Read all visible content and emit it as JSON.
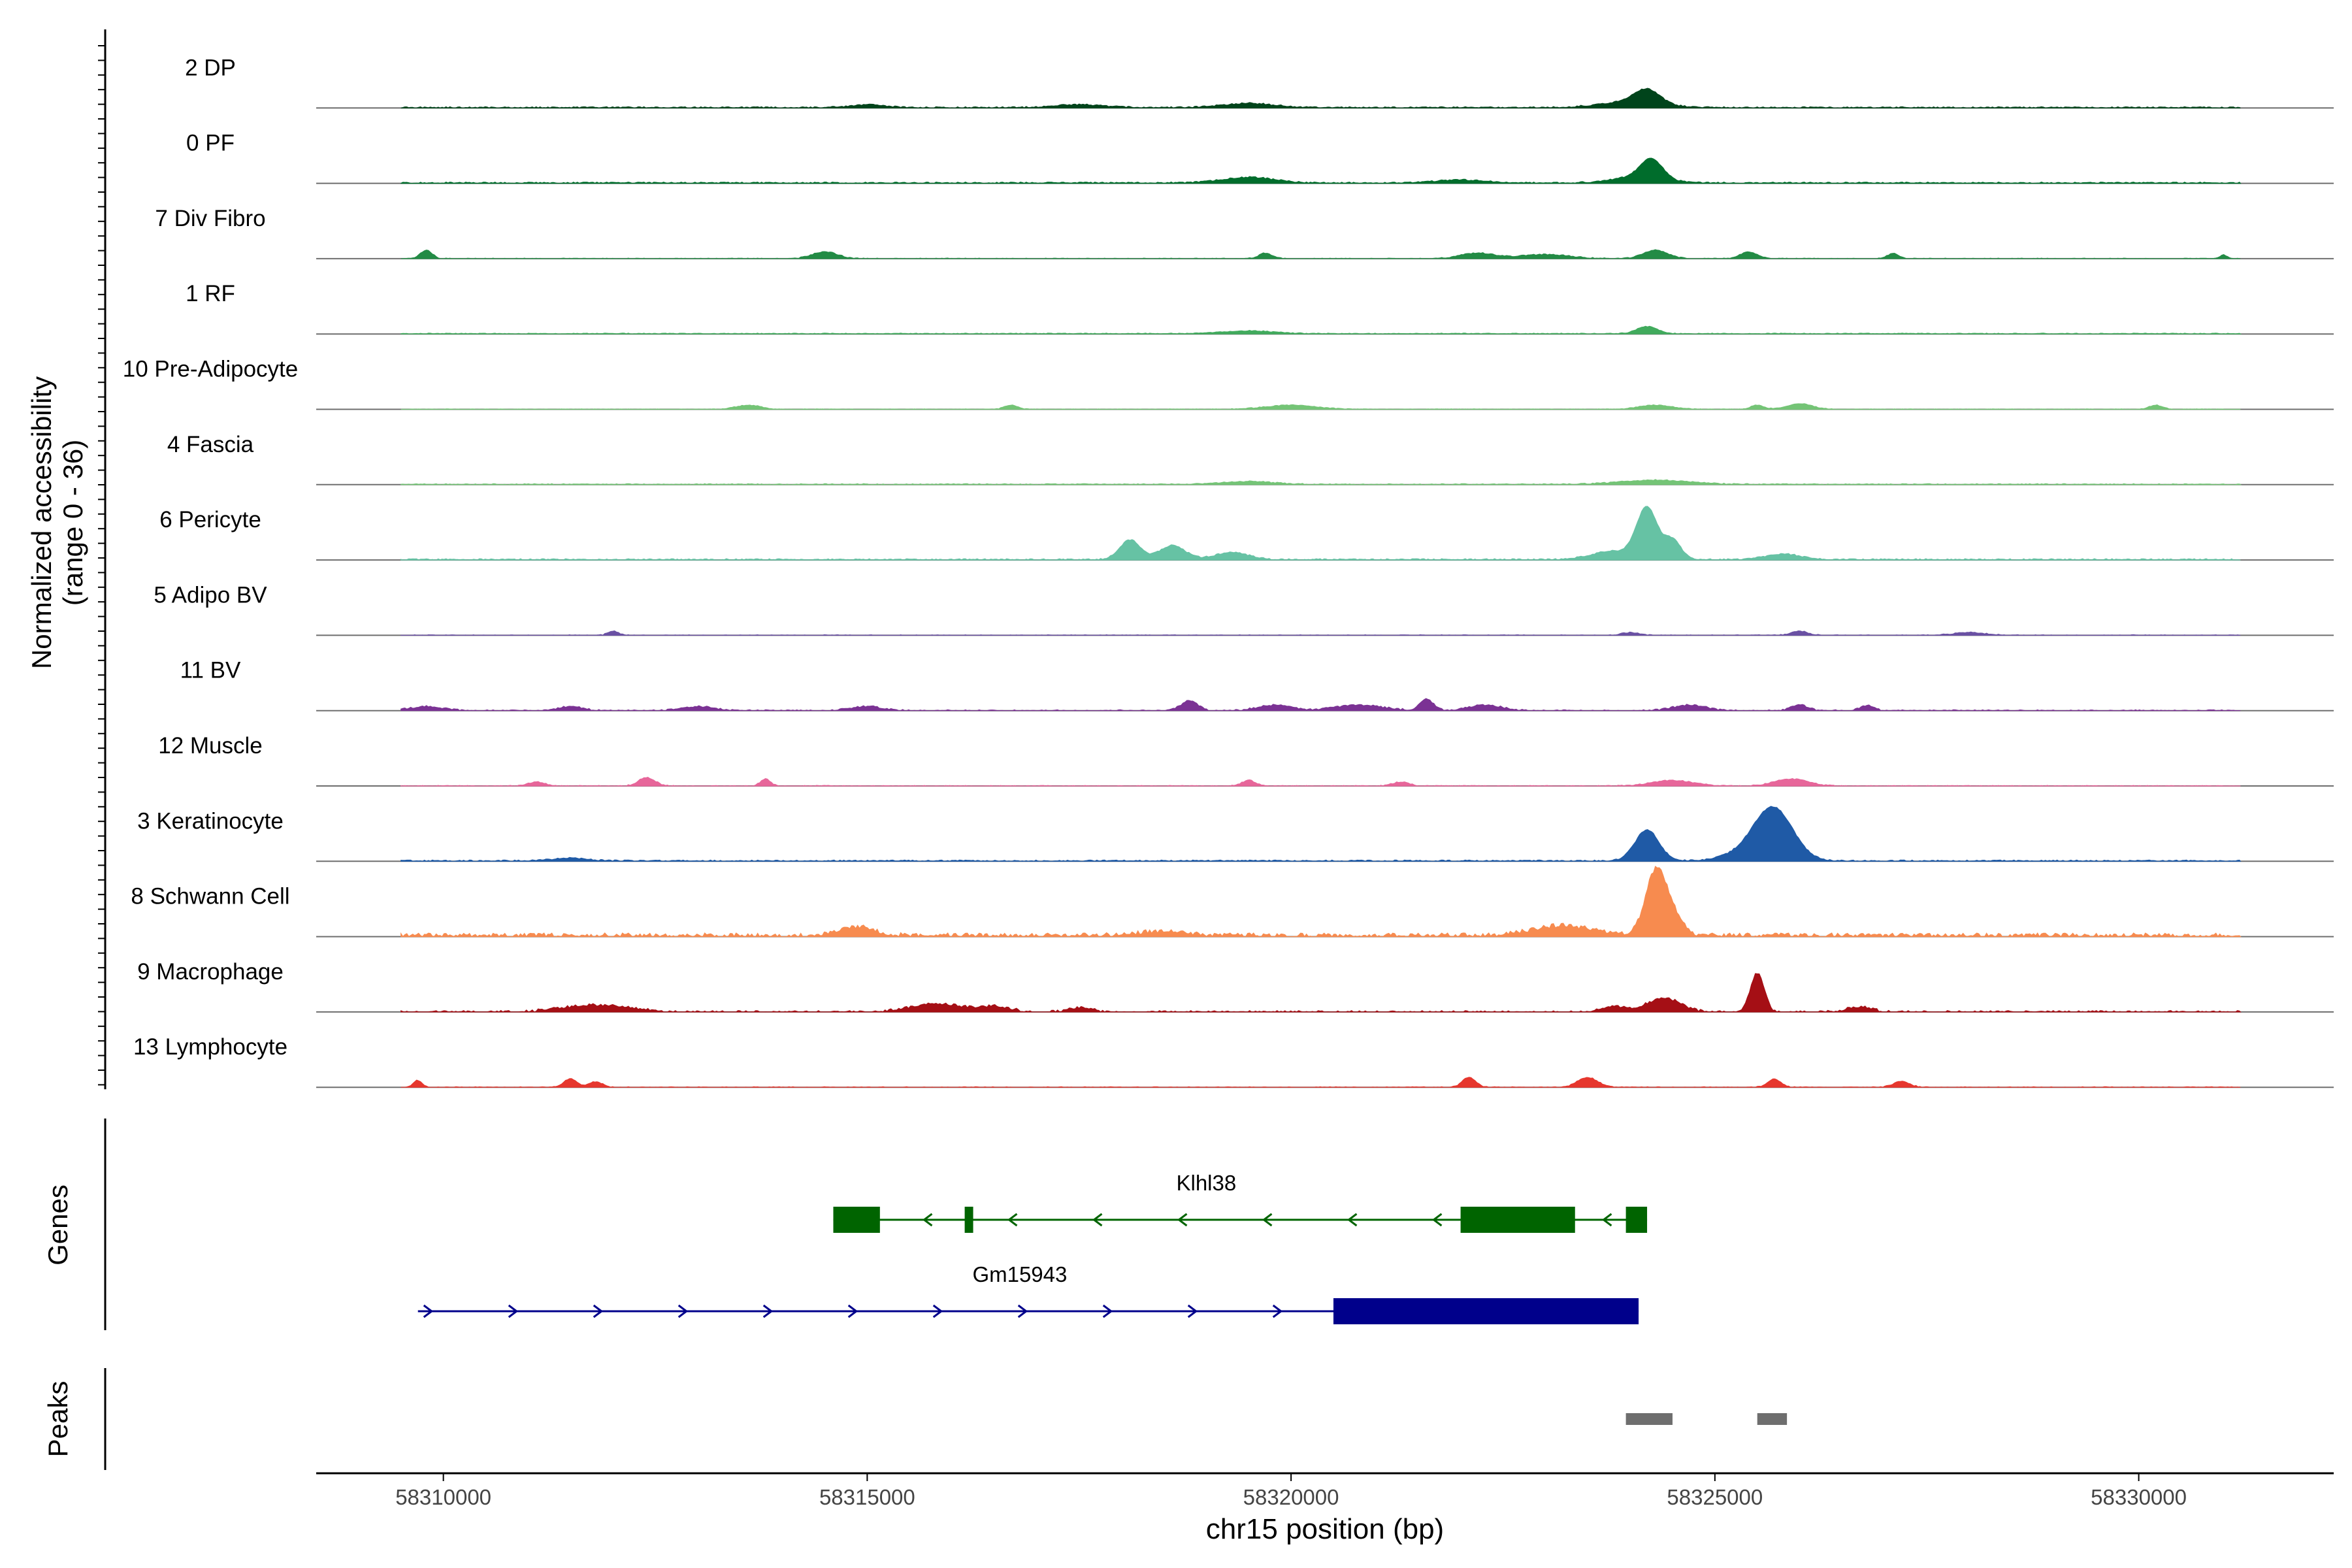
{
  "chart_data": {
    "type": "coverage-track",
    "region": "chr15",
    "xlabel": "chr15 position (bp)",
    "xlim": [
      58308500,
      58332300
    ],
    "xticks": [
      58310000,
      58315000,
      58320000,
      58325000,
      58330000
    ],
    "xtick_labels": [
      "58310000",
      "58315000",
      "58320000",
      "58325000",
      "58330000"
    ],
    "ylabel": "Normalized accessibility",
    "ylabel_range": "(range 0 - 36)",
    "ylim": [
      0,
      36
    ],
    "tracks": [
      {
        "name": "2 DP",
        "color": "#00441b",
        "base": 0.2,
        "noise": 0.25,
        "peaks": [
          [
            58324200,
            5,
            150
          ],
          [
            58324000,
            2,
            350
          ],
          [
            58319500,
            1.5,
            300
          ],
          [
            58315000,
            1.0,
            200
          ],
          [
            58317500,
            1.0,
            300
          ]
        ]
      },
      {
        "name": "0 PF",
        "color": "#006d2c",
        "base": 0.2,
        "noise": 0.25,
        "peaks": [
          [
            58324250,
            7,
            130
          ],
          [
            58324100,
            2,
            300
          ],
          [
            58319500,
            2,
            300
          ],
          [
            58322000,
            1.0,
            300
          ]
        ]
      },
      {
        "name": "7 Div Fibro",
        "color": "#238b45",
        "base": 0,
        "noise": 0.2,
        "peaks": [
          [
            58309800,
            3,
            70
          ],
          [
            58314500,
            2.5,
            150
          ],
          [
            58319700,
            2,
            80
          ],
          [
            58322200,
            2,
            200
          ],
          [
            58323000,
            1.5,
            300
          ],
          [
            58324300,
            3,
            150
          ],
          [
            58325400,
            2.5,
            100
          ],
          [
            58327100,
            2,
            60
          ],
          [
            58331000,
            1.5,
            40
          ]
        ]
      },
      {
        "name": "1 RF",
        "color": "#41ab5d",
        "base": 0.15,
        "noise": 0.15,
        "peaks": [
          [
            58324200,
            2.5,
            120
          ],
          [
            58319500,
            1.0,
            300
          ]
        ]
      },
      {
        "name": "10 Pre-Adipocyte",
        "color": "#74c476",
        "base": 0,
        "noise": 0.15,
        "peaks": [
          [
            58313600,
            1.5,
            150
          ],
          [
            58316700,
            1.5,
            80
          ],
          [
            58320000,
            1.5,
            300
          ],
          [
            58324300,
            1.5,
            200
          ],
          [
            58325500,
            1.5,
            80
          ],
          [
            58326000,
            2.0,
            150
          ],
          [
            58330200,
            1.5,
            80
          ]
        ]
      },
      {
        "name": "4 Fascia",
        "color": "#74c476",
        "base": 0.15,
        "noise": 0.2,
        "peaks": [
          [
            58324300,
            1.5,
            400
          ],
          [
            58319500,
            1.0,
            300
          ]
        ]
      },
      {
        "name": "6 Pericyte",
        "color": "#66c2a4",
        "base": 0.2,
        "noise": 0.25,
        "peaks": [
          [
            58324200,
            18,
            120
          ],
          [
            58324500,
            7,
            100
          ],
          [
            58318100,
            7,
            120
          ],
          [
            58318600,
            5,
            150
          ],
          [
            58319300,
            2.5,
            200
          ],
          [
            58323800,
            3,
            250
          ],
          [
            58325800,
            2,
            200
          ]
        ]
      },
      {
        "name": "5 Adipo BV",
        "color": "#6a51a3",
        "base": 0,
        "noise": 0.2,
        "peaks": [
          [
            58312000,
            1.5,
            60
          ],
          [
            58324000,
            1.0,
            100
          ],
          [
            58326000,
            1.5,
            100
          ],
          [
            58328000,
            1.0,
            200
          ]
        ]
      },
      {
        "name": "11 BV",
        "color": "#7b3294",
        "base": 0,
        "noise": 0.3,
        "peaks": [
          [
            58309800,
            1.5,
            200
          ],
          [
            58311500,
            1.5,
            150
          ],
          [
            58313000,
            1.5,
            200
          ],
          [
            58315000,
            1.5,
            200
          ],
          [
            58318800,
            3.5,
            100
          ],
          [
            58319800,
            2.0,
            200
          ],
          [
            58320800,
            2.0,
            300
          ],
          [
            58321600,
            4,
            80
          ],
          [
            58322300,
            2,
            200
          ],
          [
            58324700,
            2,
            200
          ],
          [
            58326000,
            2,
            100
          ],
          [
            58326800,
            2,
            80
          ]
        ]
      },
      {
        "name": "12 Muscle",
        "color": "#e7669a",
        "base": 0,
        "noise": 0.2,
        "peaks": [
          [
            58311100,
            1.5,
            100
          ],
          [
            58312400,
            3,
            100
          ],
          [
            58313800,
            2.5,
            60
          ],
          [
            58319500,
            2,
            80
          ],
          [
            58321300,
            1.5,
            100
          ],
          [
            58324500,
            2,
            250
          ],
          [
            58325900,
            2.5,
            200
          ]
        ]
      },
      {
        "name": "3 Keratinocyte",
        "color": "#1f5aa6",
        "base": 0.2,
        "noise": 0.25,
        "peaks": [
          [
            58324200,
            11,
            140
          ],
          [
            58325700,
            16,
            220
          ],
          [
            58325500,
            4,
            300
          ],
          [
            58311500,
            1.0,
            200
          ]
        ]
      },
      {
        "name": "8 Schwann Cell",
        "color": "#f78b4f",
        "base": 0.5,
        "noise": 0.8,
        "peaks": [
          [
            58324300,
            22,
            120
          ],
          [
            58324500,
            7,
            120
          ],
          [
            58323200,
            3.5,
            350
          ],
          [
            58314900,
            3,
            200
          ],
          [
            58318500,
            1.5,
            300
          ]
        ]
      },
      {
        "name": "9 Macrophage",
        "color": "#a50f15",
        "base": 0,
        "noise": 0.5,
        "peaks": [
          [
            58325500,
            14,
            80
          ],
          [
            58324400,
            5,
            200
          ],
          [
            58311800,
            2.5,
            400
          ],
          [
            58315800,
            3,
            300
          ],
          [
            58316500,
            2,
            200
          ],
          [
            58317500,
            1.5,
            150
          ],
          [
            58323800,
            2,
            150
          ],
          [
            58326700,
            2,
            150
          ]
        ]
      },
      {
        "name": "13 Lymphocyte",
        "color": "#e6372e",
        "base": 0,
        "noise": 0.2,
        "peaks": [
          [
            58309700,
            2.5,
            50
          ],
          [
            58311500,
            3,
            80
          ],
          [
            58311800,
            2,
            80
          ],
          [
            58322100,
            3.5,
            80
          ],
          [
            58323500,
            3.5,
            120
          ],
          [
            58325700,
            3,
            80
          ],
          [
            58327200,
            2,
            100
          ]
        ]
      }
    ],
    "genes_label": "Genes",
    "genes": [
      {
        "name": "Klhl38",
        "color": "#006400",
        "strand": "-",
        "start": 58314600,
        "end": 58324200,
        "exons": [
          [
            58314600,
            58315150
          ],
          [
            58316150,
            58316250
          ],
          [
            58322000,
            58323350
          ],
          [
            58323950,
            58324200
          ]
        ]
      },
      {
        "name": "Gm15943",
        "color": "#00008b",
        "strand": "+",
        "start": 58309700,
        "end": 58324100,
        "exons": [
          [
            58320500,
            58324100
          ]
        ]
      }
    ],
    "peaks_label": "Peaks",
    "peaks": [
      [
        58323950,
        58324500
      ],
      [
        58325500,
        58325850
      ]
    ]
  }
}
